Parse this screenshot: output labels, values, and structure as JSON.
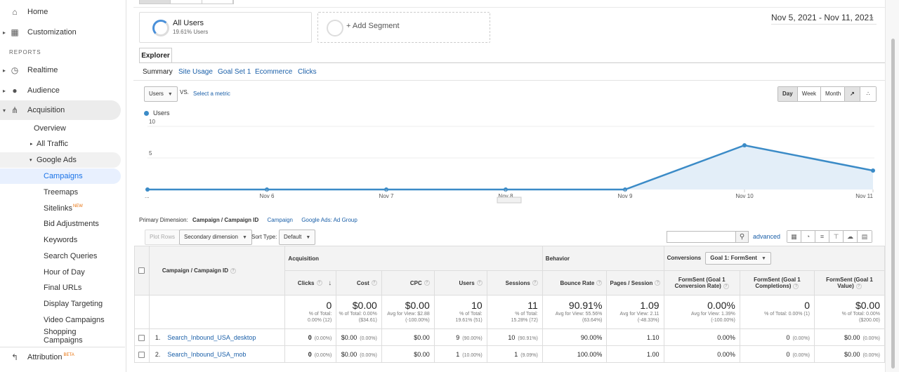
{
  "sidebar": {
    "items_top": [
      {
        "label": "Home",
        "icon": "home-icon"
      },
      {
        "label": "Customization",
        "icon": "dashboard-icon"
      }
    ],
    "reports_label": "REPORTS",
    "reports": [
      {
        "label": "Realtime",
        "icon": "clock-icon"
      },
      {
        "label": "Audience",
        "icon": "person-icon"
      },
      {
        "label": "Acquisition",
        "icon": "acquisition-icon"
      }
    ],
    "acquisition_children": {
      "overview": "Overview",
      "all_traffic": "All Traffic",
      "google_ads": "Google Ads",
      "google_ads_children": [
        "Campaigns",
        "Treemaps",
        "Sitelinks",
        "Bid Adjustments",
        "Keywords",
        "Search Queries",
        "Hour of Day",
        "Final URLs",
        "Display Targeting",
        "Video Campaigns",
        "Shopping Campaigns"
      ],
      "new_tag": "NEW"
    },
    "attribution": {
      "label": "Attribution",
      "badge": "BETA"
    }
  },
  "segments": {
    "active": {
      "name": "All Users",
      "sub": "19.61% Users"
    },
    "add_label": "+ Add Segment"
  },
  "date_range": "Nov 5, 2021 - Nov 11, 2021",
  "explorer_tab": "Explorer",
  "subtabs": [
    "Summary",
    "Site Usage",
    "Goal Set 1",
    "Ecommerce",
    "Clicks"
  ],
  "chart_controls": {
    "metric": "Users",
    "vs": "VS.",
    "select_metric": "Select a metric",
    "periods": [
      "Day",
      "Week",
      "Month"
    ],
    "selected_period": "Day"
  },
  "chart_data": {
    "type": "area",
    "series": [
      {
        "name": "Users",
        "values": [
          0,
          0,
          0,
          0,
          0,
          7,
          3
        ],
        "color": "#3b8bc7"
      }
    ],
    "x": [
      "...",
      "Nov 6",
      "Nov 7",
      "Nov 8",
      "Nov 9",
      "Nov 10",
      "Nov 11"
    ],
    "yticks": [
      10,
      5
    ],
    "ylim": [
      0,
      10
    ],
    "grid": true,
    "legend": "top-left"
  },
  "table_controls": {
    "primary_dimension_label": "Primary Dimension:",
    "primary_dimension": "Campaign / Campaign ID",
    "alt_dims": [
      "Campaign",
      "Google Ads: Ad Group"
    ],
    "plot_rows": "Plot Rows",
    "secondary_dimension": "Secondary dimension",
    "sort_type_label": "Sort Type:",
    "sort_type": "Default",
    "advanced": "advanced"
  },
  "table": {
    "dim_header": "Campaign / Campaign ID",
    "groups": {
      "acquisition": "Acquisition",
      "behavior": "Behavior",
      "conversions": "Conversions",
      "goal_select": "Goal 1: FormSent"
    },
    "columns": [
      "Clicks",
      "Cost",
      "CPC",
      "Users",
      "Sessions",
      "Bounce Rate",
      "Pages / Session",
      "FormSent (Goal 1 Conversion Rate)",
      "FormSent (Goal 1 Completions)",
      "FormSent (Goal 1 Value)"
    ],
    "totals": [
      {
        "big": "0",
        "l1": "% of Total:",
        "l2": "0.00% (12)",
        "l3": ""
      },
      {
        "big": "$0.00",
        "l1": "% of Total: 0.00%",
        "l2": "($34.61)",
        "l3": ""
      },
      {
        "big": "$0.00",
        "l1": "Avg for View: $2.88",
        "l2": "(-100.00%)",
        "l3": ""
      },
      {
        "big": "10",
        "l1": "% of Total:",
        "l2": "19.61% (51)",
        "l3": ""
      },
      {
        "big": "11",
        "l1": "% of Total:",
        "l2": "15.28% (72)",
        "l3": ""
      },
      {
        "big": "90.91%",
        "l1": "Avg for View: 55.56%",
        "l2": "(63.64%)",
        "l3": ""
      },
      {
        "big": "1.09",
        "l1": "Avg for View: 2.11",
        "l2": "(-48.33%)",
        "l3": ""
      },
      {
        "big": "0.00%",
        "l1": "Avg for View: 1.39%",
        "l2": "(-100.00%)",
        "l3": ""
      },
      {
        "big": "0",
        "l1": "% of Total: 0.00% (1)",
        "l2": "",
        "l3": ""
      },
      {
        "big": "$0.00",
        "l1": "% of Total: 0.00%",
        "l2": "($200.00)",
        "l3": ""
      }
    ],
    "rows": [
      {
        "idx": "1.",
        "name": "Search_Inbound_USA_desktop",
        "cells": [
          [
            "0",
            "(0.00%)"
          ],
          [
            "$0.00",
            "(0.00%)"
          ],
          [
            "$0.00",
            ""
          ],
          [
            "9",
            "(90.00%)"
          ],
          [
            "10",
            "(90.91%)"
          ],
          [
            "90.00%",
            ""
          ],
          [
            "1.10",
            ""
          ],
          [
            "0.00%",
            ""
          ],
          [
            "0",
            "(0.00%)"
          ],
          [
            "$0.00",
            "(0.00%)"
          ]
        ]
      },
      {
        "idx": "2.",
        "name": "Search_Inbound_USA_mob",
        "cells": [
          [
            "0",
            "(0.00%)"
          ],
          [
            "$0.00",
            "(0.00%)"
          ],
          [
            "$0.00",
            ""
          ],
          [
            "1",
            "(10.00%)"
          ],
          [
            "1",
            "(9.09%)"
          ],
          [
            "100.00%",
            ""
          ],
          [
            "1.00",
            ""
          ],
          [
            "0.00%",
            ""
          ],
          [
            "0",
            "(0.00%)"
          ],
          [
            "$0.00",
            "(0.00%)"
          ]
        ]
      }
    ]
  }
}
